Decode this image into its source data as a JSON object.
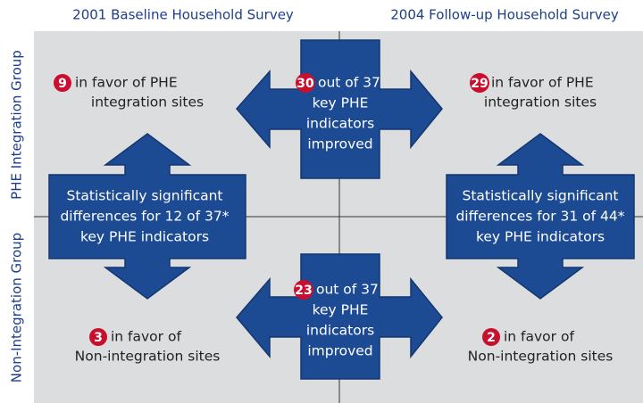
{
  "columns": [
    "2001 Baseline Household Survey",
    "2004 Follow-up Household Survey"
  ],
  "rows": [
    "PHE Integration Group",
    "Non-Integration Group"
  ],
  "cells": [
    {
      "number": "9",
      "text": [
        "in favor of PHE",
        "integration sites"
      ]
    },
    {
      "number": "29",
      "text": [
        "in favor of PHE",
        "integration sites"
      ]
    },
    {
      "number": "3",
      "text": [
        "in favor of",
        "Non-integration sites"
      ]
    },
    {
      "number": "2",
      "text": [
        "in favor of",
        "Non-integration sites"
      ]
    }
  ],
  "center": [
    {
      "number": "30",
      "text": [
        "out of 37",
        "key PHE",
        "indicators",
        "improved"
      ]
    },
    {
      "number": "23",
      "text": [
        "out of 37",
        "key PHE",
        "indicators",
        "improved"
      ]
    }
  ],
  "side": [
    {
      "text": [
        "Statistically significant",
        "differences for 12 of 37*",
        "key PHE indicators"
      ]
    },
    {
      "text": [
        "Statistically significant",
        "differences for 31 of 44*",
        "key PHE indicators"
      ]
    }
  ]
}
